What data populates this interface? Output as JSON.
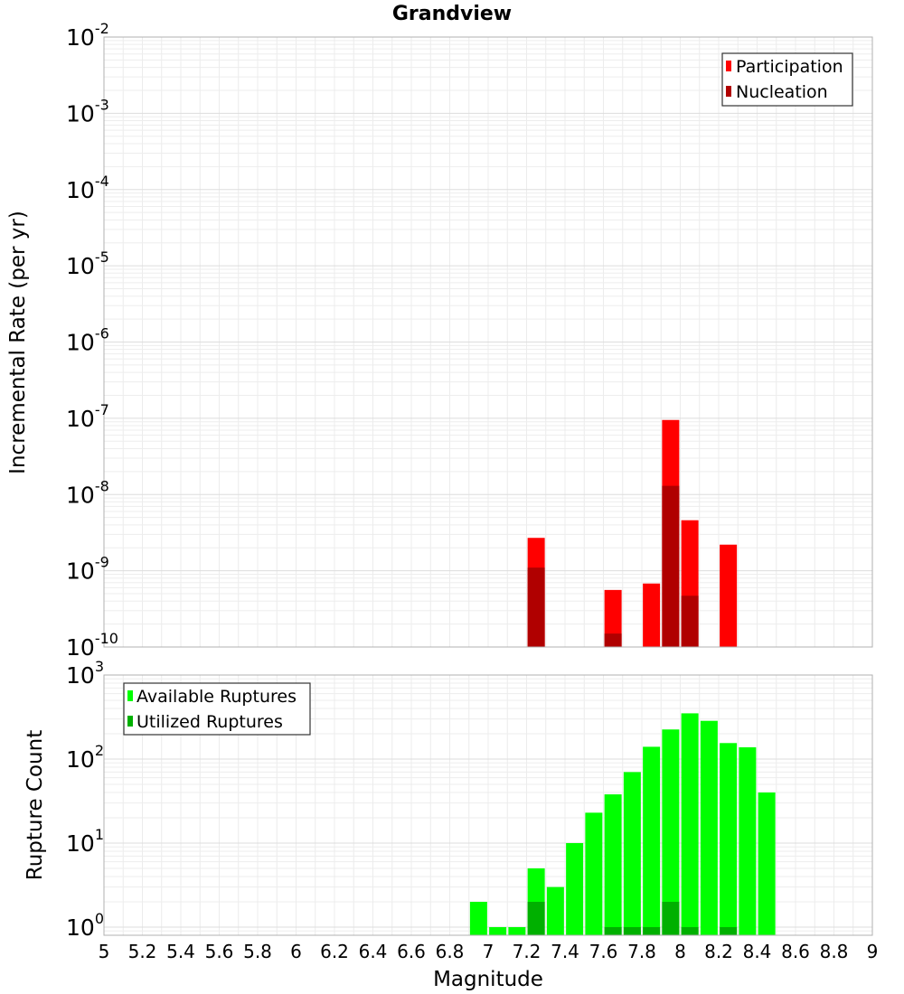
{
  "chart_data": [
    {
      "type": "bar",
      "title": "Grandview",
      "ylabel": "Incremental Rate (per yr)",
      "xlabel": "",
      "y_scale": "log",
      "ylim": [
        1e-10,
        0.01
      ],
      "xlim": [
        5,
        9
      ],
      "legend_position": "top-right",
      "series": [
        {
          "name": "Participation",
          "color": "#ff0000",
          "points": [
            {
              "x": 7.25,
              "y": 2.7e-09
            },
            {
              "x": 7.65,
              "y": 5.6e-10
            },
            {
              "x": 7.85,
              "y": 6.8e-10
            },
            {
              "x": 7.95,
              "y": 9.5e-08
            },
            {
              "x": 8.05,
              "y": 4.6e-09
            },
            {
              "x": 8.25,
              "y": 2.2e-09
            }
          ]
        },
        {
          "name": "Nucleation",
          "color": "#b00000",
          "points": [
            {
              "x": 7.25,
              "y": 1.1e-09
            },
            {
              "x": 7.65,
              "y": 1.5e-10
            },
            {
              "x": 7.95,
              "y": 1.3e-08
            },
            {
              "x": 8.05,
              "y": 4.7e-10
            }
          ]
        }
      ]
    },
    {
      "type": "bar",
      "title": "",
      "ylabel": "Rupture Count",
      "xlabel": "Magnitude",
      "y_scale": "log",
      "ylim": [
        0.8,
        1000
      ],
      "xlim": [
        5,
        9
      ],
      "legend_position": "top-left",
      "x_ticks": [
        "5",
        "5.2",
        "5.4",
        "5.6",
        "5.8",
        "6",
        "6.2",
        "6.4",
        "6.6",
        "6.8",
        "7",
        "7.2",
        "7.4",
        "7.6",
        "7.8",
        "8",
        "8.2",
        "8.4",
        "8.6",
        "8.8",
        "9"
      ],
      "series": [
        {
          "name": "Available Ruptures",
          "color": "#00ff00",
          "points": [
            {
              "x": 6.95,
              "y": 2
            },
            {
              "x": 7.05,
              "y": 1
            },
            {
              "x": 7.15,
              "y": 1
            },
            {
              "x": 7.25,
              "y": 5
            },
            {
              "x": 7.35,
              "y": 3
            },
            {
              "x": 7.45,
              "y": 10
            },
            {
              "x": 7.55,
              "y": 23
            },
            {
              "x": 7.65,
              "y": 38
            },
            {
              "x": 7.75,
              "y": 70
            },
            {
              "x": 7.85,
              "y": 140
            },
            {
              "x": 7.95,
              "y": 225
            },
            {
              "x": 8.05,
              "y": 350
            },
            {
              "x": 8.15,
              "y": 285
            },
            {
              "x": 8.25,
              "y": 155
            },
            {
              "x": 8.35,
              "y": 138
            },
            {
              "x": 8.45,
              "y": 40
            }
          ]
        },
        {
          "name": "Utilized Ruptures",
          "color": "#00b000",
          "points": [
            {
              "x": 7.25,
              "y": 2
            },
            {
              "x": 7.65,
              "y": 1
            },
            {
              "x": 7.75,
              "y": 1
            },
            {
              "x": 7.85,
              "y": 1
            },
            {
              "x": 7.95,
              "y": 2
            },
            {
              "x": 8.05,
              "y": 1
            },
            {
              "x": 8.25,
              "y": 1
            }
          ]
        }
      ]
    }
  ]
}
